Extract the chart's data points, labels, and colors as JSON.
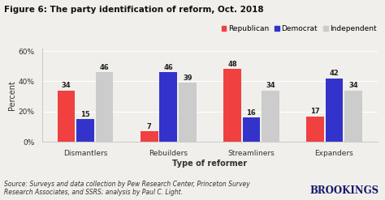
{
  "title": "Figure 6: The party identification of reform, Oct. 2018",
  "categories": [
    "Dismantlers",
    "Rebuilders",
    "Streamliners",
    "Expanders"
  ],
  "series": {
    "Republican": [
      34,
      7,
      48,
      17
    ],
    "Democrat": [
      15,
      46,
      16,
      42
    ],
    "Independent": [
      46,
      39,
      34,
      34
    ]
  },
  "colors": {
    "Republican": "#f04040",
    "Democrat": "#3333cc",
    "Independent": "#cccccc"
  },
  "xlabel": "Type of reformer",
  "ylabel": "Percent",
  "ylim": [
    0,
    62
  ],
  "yticks": [
    0,
    20,
    40,
    60
  ],
  "ytick_labels": [
    "0%",
    "20%",
    "40%",
    "60%"
  ],
  "source_text": "Source: Surveys and data collection by Pew Research Center, Princeton Survey\nResearch Associates, and SSRS; analysis by Paul C. Light.",
  "brookings_text": "BROOKINGS",
  "background_color": "#f0efeb",
  "bar_width": 0.23,
  "title_fontsize": 7.5,
  "axis_label_fontsize": 7.0,
  "tick_fontsize": 6.5,
  "value_fontsize": 6.0,
  "source_fontsize": 5.5,
  "brookings_fontsize": 8.5
}
